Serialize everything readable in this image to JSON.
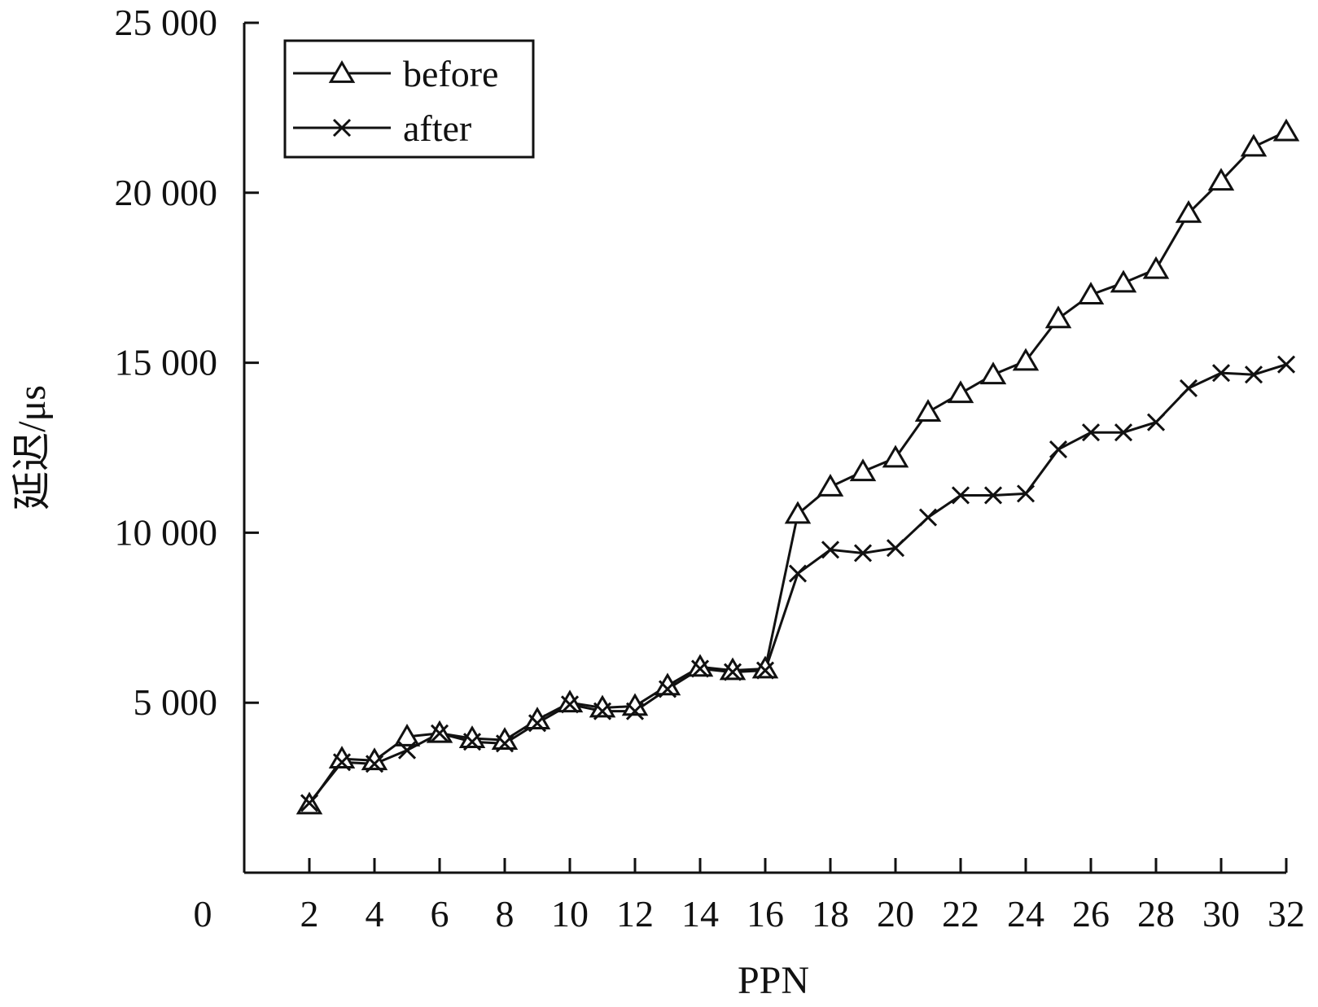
{
  "chart_data": {
    "type": "line",
    "xlabel": "PPN",
    "ylabel": "延迟/μs",
    "xlim": [
      0,
      32
    ],
    "ylim": [
      0,
      25000
    ],
    "x_ticks": [
      2,
      4,
      6,
      8,
      10,
      12,
      14,
      16,
      18,
      20,
      22,
      24,
      26,
      28,
      30,
      32
    ],
    "x_tick_labels": [
      "2",
      "4",
      "6",
      "8",
      "10",
      "12",
      "14",
      "16",
      "18",
      "20",
      "22",
      "24",
      "26",
      "28",
      "30",
      "32"
    ],
    "origin_label": "0",
    "y_ticks": [
      5000,
      10000,
      15000,
      20000,
      25000
    ],
    "y_tick_labels": [
      "5 000",
      "10 000",
      "15 000",
      "20 000",
      "25 000"
    ],
    "legend_position": "top-left",
    "grid": false,
    "x": [
      2,
      3,
      4,
      5,
      6,
      7,
      8,
      9,
      10,
      11,
      12,
      13,
      14,
      15,
      16,
      17,
      18,
      19,
      20,
      21,
      22,
      23,
      24,
      25,
      26,
      27,
      28,
      29,
      30,
      31,
      32
    ],
    "series": [
      {
        "name": "before",
        "marker": "triangle",
        "values": [
          2000,
          3350,
          3300,
          4000,
          4100,
          3950,
          3900,
          4500,
          5000,
          4850,
          4900,
          5500,
          6050,
          5950,
          6000,
          10550,
          11350,
          11800,
          12200,
          13550,
          14100,
          14650,
          15050,
          16300,
          17000,
          17350,
          17750,
          19400,
          20350,
          21350,
          21800
        ]
      },
      {
        "name": "after",
        "marker": "x",
        "values": [
          2050,
          3250,
          3200,
          3600,
          4100,
          3850,
          3800,
          4400,
          4950,
          4750,
          4750,
          5400,
          6000,
          5900,
          5950,
          8800,
          9500,
          9400,
          9550,
          10450,
          11100,
          11100,
          11150,
          12450,
          12950,
          12950,
          13250,
          14250,
          14700,
          14650,
          14950
        ]
      }
    ]
  }
}
